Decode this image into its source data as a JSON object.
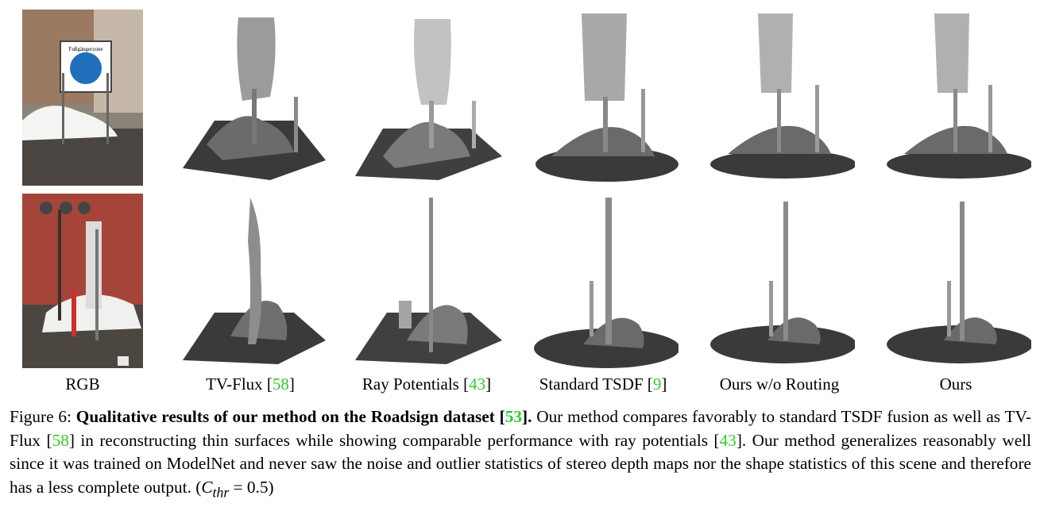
{
  "columns": [
    {
      "label": "RGB",
      "ref": ""
    },
    {
      "label": "TV-Flux [",
      "ref": "58",
      "suffix": "]"
    },
    {
      "label": "Ray Potentials [",
      "ref": "43",
      "suffix": "]"
    },
    {
      "label": "Standard TSDF [",
      "ref": "9",
      "suffix": "]"
    },
    {
      "label": "Ours w/o Routing",
      "ref": ""
    },
    {
      "label": "Ours",
      "ref": ""
    }
  ],
  "rgb_sign_text": "Fußgängerzone",
  "caption": {
    "prefix": "Figure 6: ",
    "bold": "Qualitative results of our method on the Roadsign dataset [",
    "bold_ref": "53",
    "bold_end": "].",
    "p1": " Our method compares favorably to standard TSDF fusion as well as TV-Flux [",
    "r1": "58",
    "p2": "] in reconstructing thin surfaces while showing comparable performance with ray potentials [",
    "r2": "43",
    "p3": "]. Our method generalizes reasonably well since it was trained on ModelNet and never saw the noise and outlier statistics of stereo depth maps nor the shape statistics of this scene and therefore has a less complete output. (",
    "math": "C",
    "math_sub": "thr",
    "math_end": " = 0.5)"
  },
  "colors": {
    "ref_green": "#2ecc2e",
    "mesh_dark": "#3a3a3a",
    "mesh_light": "#bdbdbd"
  }
}
